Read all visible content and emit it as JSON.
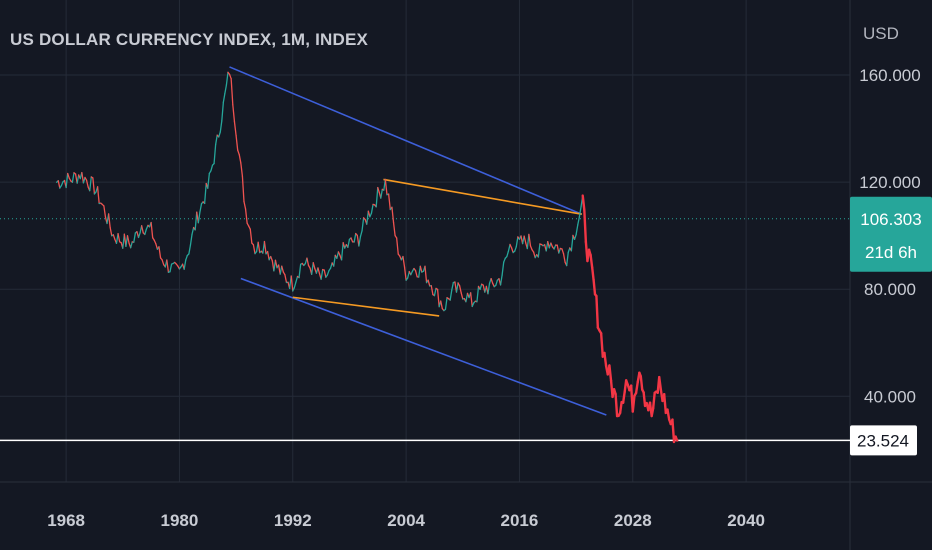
{
  "chart_data": {
    "type": "line",
    "title": "US DOLLAR CURRENCY INDEX, 1M, INDEX",
    "currency": "USD",
    "x_ticks": [
      "1968",
      "1980",
      "1992",
      "2004",
      "2016",
      "2028",
      "2040"
    ],
    "y_ticks": [
      "160.000",
      "120.000",
      "80.000",
      "40.000"
    ],
    "xlim": [
      1961,
      2051
    ],
    "ylim": [
      8,
      188
    ],
    "grid": true,
    "current_price": {
      "label": "106.303",
      "value": 106.303,
      "countdown": "21d 6h"
    },
    "horizontal_line": {
      "label": "23.524",
      "value": 23.524
    },
    "series": [
      {
        "points": [
          [
            1967.0,
            120
          ],
          [
            1968.5,
            121
          ],
          [
            1969.5,
            123
          ],
          [
            1971.0,
            118
          ],
          [
            1972.0,
            110
          ],
          [
            1973.0,
            100
          ],
          [
            1974.0,
            98
          ],
          [
            1975.0,
            97
          ],
          [
            1976.0,
            104
          ],
          [
            1977.0,
            102
          ],
          [
            1978.0,
            92
          ],
          [
            1979.0,
            88
          ],
          [
            1980.0,
            86
          ],
          [
            1981.0,
            95
          ],
          [
            1982.0,
            108
          ],
          [
            1983.0,
            118
          ],
          [
            1984.0,
            135
          ],
          [
            1985.3,
            162
          ],
          [
            1986.0,
            140
          ],
          [
            1987.0,
            110
          ],
          [
            1988.0,
            95
          ],
          [
            1989.0,
            97
          ],
          [
            1990.0,
            90
          ],
          [
            1991.0,
            85
          ],
          [
            1992.0,
            82
          ],
          [
            1993.0,
            90
          ],
          [
            1994.0,
            88
          ],
          [
            1995.0,
            84
          ],
          [
            1996.0,
            86
          ],
          [
            1997.0,
            93
          ],
          [
            1998.0,
            97
          ],
          [
            1999.0,
            99
          ],
          [
            2000.0,
            108
          ],
          [
            2001.0,
            115
          ],
          [
            2001.8,
            120
          ],
          [
            2002.5,
            108
          ],
          [
            2003.0,
            97
          ],
          [
            2004.0,
            86
          ],
          [
            2005.0,
            88
          ],
          [
            2006.0,
            86
          ],
          [
            2007.0,
            80
          ],
          [
            2008.0,
            73
          ],
          [
            2009.0,
            80
          ],
          [
            2010.0,
            79
          ],
          [
            2011.0,
            75
          ],
          [
            2012.0,
            80
          ],
          [
            2013.0,
            81
          ],
          [
            2014.0,
            84
          ],
          [
            2015.0,
            96
          ],
          [
            2016.0,
            97
          ],
          [
            2017.0,
            98
          ],
          [
            2018.0,
            93
          ],
          [
            2019.0,
            98
          ],
          [
            2020.0,
            96
          ],
          [
            2021.0,
            92
          ],
          [
            2022.0,
            103
          ],
          [
            2022.7,
            112
          ],
          [
            2023.2,
            95
          ],
          [
            2023.7,
            85
          ],
          [
            2024.3,
            70
          ],
          [
            2025.0,
            55
          ],
          [
            2025.7,
            45
          ],
          [
            2026.5,
            35
          ],
          [
            2027.3,
            46
          ],
          [
            2028.0,
            38
          ],
          [
            2028.7,
            52
          ],
          [
            2029.3,
            40
          ],
          [
            2030.0,
            33
          ],
          [
            2030.8,
            45
          ],
          [
            2031.5,
            36
          ],
          [
            2032.2,
            28
          ],
          [
            2032.7,
            23.5
          ]
        ]
      }
    ],
    "trendlines": [
      {
        "color": "#3d5fd9",
        "from": [
          1985.3,
          163
        ],
        "to": [
          2022.6,
          108
        ]
      },
      {
        "color": "#3d5fd9",
        "from": [
          1986.5,
          84
        ],
        "to": [
          2025.2,
          33
        ]
      },
      {
        "color": "#f59a23",
        "from": [
          2001.6,
          121
        ],
        "to": [
          2022.6,
          108
        ]
      },
      {
        "color": "#f59a23",
        "from": [
          1992.0,
          77
        ],
        "to": [
          2007.5,
          70
        ]
      }
    ]
  }
}
